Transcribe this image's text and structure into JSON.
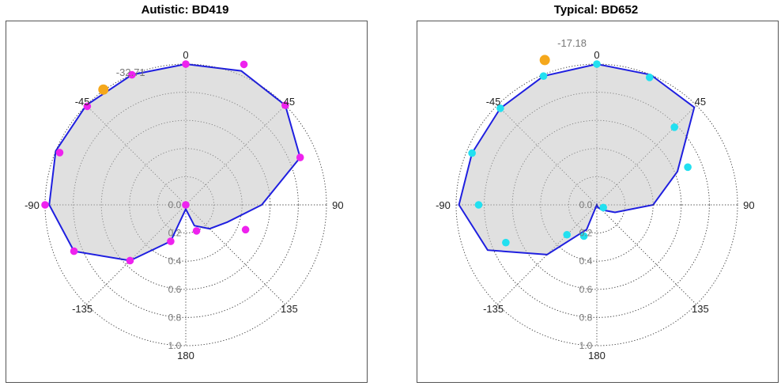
{
  "chart_data": [
    {
      "type": "polar",
      "title": "Autistic: BD419",
      "theta_ticks": [
        0,
        45,
        90,
        135,
        180,
        -135,
        -90,
        -45
      ],
      "theta_labels": [
        "0",
        "45",
        "90",
        "135",
        "180",
        "-135",
        "-90",
        "-45"
      ],
      "r_ticks": [
        0,
        0.2,
        0.4,
        0.6,
        0.8,
        1.0
      ],
      "r_labels": [
        "0.0",
        "0.2",
        "0.4",
        "0.6",
        "0.8",
        "1.0"
      ],
      "rlim": [
        0,
        1.0
      ],
      "grid": true,
      "orientation": "0 at top, clockwise",
      "area_color": "#dddddd",
      "line_color": "#1f1fe0",
      "point_color": "#ee22ee",
      "marker_color": "#f5a81c",
      "mean_angle": -32.71,
      "mean_angle_label": "-32.71",
      "mean_marker_r": 1.0,
      "outline": [
        {
          "theta": 0,
          "r": 1.0
        },
        {
          "theta": 22.5,
          "r": 1.03
        },
        {
          "theta": 45,
          "r": 1.0
        },
        {
          "theta": 67.5,
          "r": 0.88
        },
        {
          "theta": 90,
          "r": 0.54
        },
        {
          "theta": 112.5,
          "r": 0.32
        },
        {
          "theta": 135,
          "r": 0.24
        },
        {
          "theta": 157.5,
          "r": 0.16
        },
        {
          "theta": 180,
          "r": 0.03
        },
        {
          "theta": 202.5,
          "r": 0.28
        },
        {
          "theta": 225,
          "r": 0.56
        },
        {
          "theta": 247.5,
          "r": 0.86
        },
        {
          "theta": 270,
          "r": 0.97
        },
        {
          "theta": 292.5,
          "r": 1.0
        },
        {
          "theta": 315,
          "r": 1.0
        },
        {
          "theta": 337.5,
          "r": 1.0
        }
      ],
      "points": [
        {
          "theta": 0,
          "r": 1.0
        },
        {
          "theta": 22.5,
          "r": 1.08
        },
        {
          "theta": 45,
          "r": 1.0
        },
        {
          "theta": 67.5,
          "r": 0.88
        },
        {
          "theta": 112.5,
          "r": 0.46
        },
        {
          "theta": 157.5,
          "r": 0.2
        },
        {
          "theta": 180,
          "r": 0.0
        },
        {
          "theta": 202.5,
          "r": 0.28
        },
        {
          "theta": 225,
          "r": 0.56
        },
        {
          "theta": 247.5,
          "r": 0.86
        },
        {
          "theta": 270,
          "r": 1.0
        },
        {
          "theta": 292.5,
          "r": 0.97
        },
        {
          "theta": 315,
          "r": 0.99
        },
        {
          "theta": 337.5,
          "r": 1.0
        }
      ]
    },
    {
      "type": "polar",
      "title": "Typical: BD652",
      "theta_ticks": [
        0,
        45,
        90,
        135,
        180,
        -135,
        -90,
        -45
      ],
      "theta_labels": [
        "0",
        "45",
        "90",
        "135",
        "180",
        "-135",
        "-90",
        "-45"
      ],
      "r_ticks": [
        0,
        0.2,
        0.4,
        0.6,
        0.8,
        1.0
      ],
      "r_labels": [
        "0.0",
        "0.2",
        "0.4",
        "0.6",
        "0.8",
        "1.0"
      ],
      "rlim": [
        0,
        1.0
      ],
      "grid": true,
      "orientation": "0 at top, clockwise",
      "area_color": "#dddddd",
      "line_color": "#1f1fe0",
      "point_color": "#22e0f0",
      "marker_color": "#f5a81c",
      "mean_angle": -17.18,
      "mean_angle_label": "-17.18",
      "mean_marker_r": 1.1,
      "outline": [
        {
          "theta": 0,
          "r": 1.0
        },
        {
          "theta": 22.5,
          "r": 1.0
        },
        {
          "theta": 45,
          "r": 0.98
        },
        {
          "theta": 67.5,
          "r": 0.62
        },
        {
          "theta": 90,
          "r": 0.4
        },
        {
          "theta": 112.5,
          "r": 0.14
        },
        {
          "theta": 135,
          "r": 0.05
        },
        {
          "theta": 157.5,
          "r": 0.02
        },
        {
          "theta": 180,
          "r": 0.0
        },
        {
          "theta": 202.5,
          "r": 0.19
        },
        {
          "theta": 225,
          "r": 0.5
        },
        {
          "theta": 247.5,
          "r": 0.84
        },
        {
          "theta": 270,
          "r": 0.98
        },
        {
          "theta": 292.5,
          "r": 0.96
        },
        {
          "theta": 315,
          "r": 0.97
        },
        {
          "theta": 337.5,
          "r": 0.99
        }
      ],
      "points": [
        {
          "theta": 0,
          "r": 1.0
        },
        {
          "theta": 22.5,
          "r": 0.98
        },
        {
          "theta": 45,
          "r": 0.78
        },
        {
          "theta": 67.5,
          "r": 0.7
        },
        {
          "theta": 112.5,
          "r": 0.05
        },
        {
          "theta": 202.5,
          "r": 0.24
        },
        {
          "theta": 225,
          "r": 0.3
        },
        {
          "theta": 247.5,
          "r": 0.7
        },
        {
          "theta": 270,
          "r": 0.84
        },
        {
          "theta": 292.5,
          "r": 0.96
        },
        {
          "theta": 315,
          "r": 0.97
        },
        {
          "theta": 337.5,
          "r": 0.99
        }
      ]
    }
  ]
}
